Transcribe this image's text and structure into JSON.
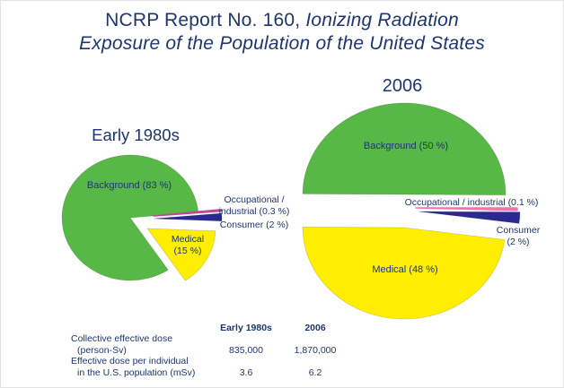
{
  "header": {
    "title_line1_regular": "NCRP Report No. 160, ",
    "title_line1_italic": "Ionizing Radiation",
    "title_line2_italic": "Exposure of the Population of the United States"
  },
  "colors": {
    "text_navy": "#1e3570",
    "background_slice_green": "#57b845",
    "medical_slice_yellow": "#ffee00",
    "consumer_slice_navy": "#29298f",
    "occupational_slice_magenta_1980s": "#c2449a",
    "occupational_slice_pink_2006": "#f272ae"
  },
  "chart_data": [
    {
      "type": "pie",
      "title": "Early 1980s",
      "unit": "percent",
      "slices": [
        {
          "name": "Background",
          "pct": 83,
          "color": "#57b845",
          "label": "Background (83 %)"
        },
        {
          "name": "Medical",
          "pct": 15,
          "color": "#ffee00",
          "label": "Medical (15 %)",
          "label_line1": "Medical",
          "label_line2": "(15 %)"
        },
        {
          "name": "Consumer",
          "pct": 2,
          "color": "#29298f",
          "label": "Consumer (2 %)"
        },
        {
          "name": "Occupational / industrial",
          "pct": 0.3,
          "color": "#c2449a",
          "label": "Occupational / industrial (0.3 %)",
          "label_line1": "Occupational /",
          "label_line2": "industrial (0.3 %)"
        }
      ]
    },
    {
      "type": "pie",
      "title": "2006",
      "unit": "percent",
      "slices": [
        {
          "name": "Background",
          "pct": 50,
          "color": "#57b845",
          "label": "Background (50 %)"
        },
        {
          "name": "Medical",
          "pct": 48,
          "color": "#ffee00",
          "label": "Medical (48 %)"
        },
        {
          "name": "Consumer",
          "pct": 2,
          "color": "#29298f",
          "label": "Consumer (2 %)",
          "label_line1": "Consumer",
          "label_line2": "(2 %)"
        },
        {
          "name": "Occupational / industrial",
          "pct": 0.1,
          "color": "#f272ae",
          "label": "Occupational / industrial (0.1 %)"
        }
      ]
    },
    {
      "type": "table",
      "col_headers": [
        "Early 1980s",
        "2006"
      ],
      "rows": [
        {
          "label_line1": "Collective effective dose",
          "label_line2": "(person-Sv)",
          "values": [
            "835,000",
            "1,870,000"
          ]
        },
        {
          "label_line1": "Effective dose per individual",
          "label_line2": "in the U.S. population (mSv)",
          "values": [
            "3.6",
            "6.2"
          ]
        }
      ]
    }
  ]
}
